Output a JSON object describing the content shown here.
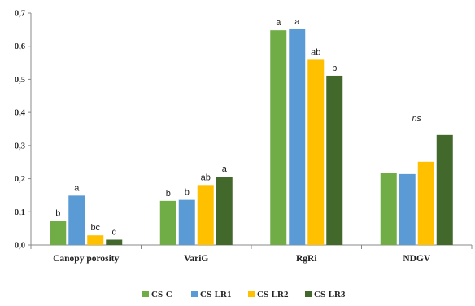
{
  "chart_data": {
    "type": "bar",
    "categories": [
      "Canopy porosity",
      "VariG",
      "RgRi",
      "NDGV"
    ],
    "series": [
      {
        "name": "CS-C",
        "color": "#70ad47",
        "values": [
          0.073,
          0.133,
          0.648,
          0.218
        ],
        "labels": [
          "b",
          "b",
          "a",
          ""
        ]
      },
      {
        "name": "CS-LR1",
        "color": "#5b9bd5",
        "values": [
          0.149,
          0.136,
          0.651,
          0.214
        ],
        "labels": [
          "a",
          "b",
          "a",
          ""
        ]
      },
      {
        "name": "CS-LR2",
        "color": "#ffc000",
        "values": [
          0.029,
          0.181,
          0.559,
          0.251
        ],
        "labels": [
          "bc",
          "ab",
          "ab",
          ""
        ]
      },
      {
        "name": "CS-LR3",
        "color": "#43682b",
        "values": [
          0.016,
          0.206,
          0.511,
          0.332
        ],
        "labels": [
          "c",
          "a",
          "b",
          ""
        ]
      }
    ],
    "group_annotations": [
      {
        "category": "NDGV",
        "text": "ns",
        "style": "italic"
      }
    ],
    "ylim": [
      0,
      0.7
    ],
    "yticks": [
      "0,0",
      "0,1",
      "0,2",
      "0,3",
      "0,4",
      "0,5",
      "0,6",
      "0,7"
    ],
    "ytick_values": [
      0,
      0.1,
      0.2,
      0.3,
      0.4,
      0.5,
      0.6,
      0.7
    ],
    "grid": false,
    "legend_position": "bottom"
  }
}
